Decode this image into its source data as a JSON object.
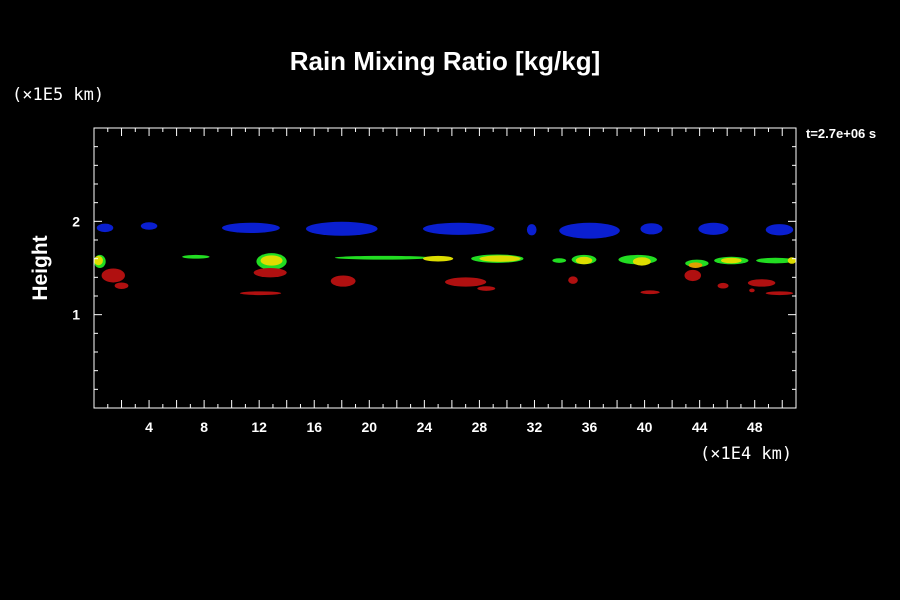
{
  "chart_data": {
    "type": "heatmap",
    "title": "Rain Mixing Ratio [kg/kg]",
    "ylabel": "Height",
    "y_unit_label": "(×1E5 km)",
    "x_unit_label": "(×1E4 km)",
    "time_label": "t=2.7e+06 s",
    "xlim": [
      0,
      51
    ],
    "ylim": [
      0,
      3
    ],
    "x_ticks": [
      "4",
      "8",
      "12",
      "16",
      "20",
      "24",
      "28",
      "32",
      "36",
      "40",
      "44",
      "48"
    ],
    "x_tick_values": [
      4,
      8,
      12,
      16,
      20,
      24,
      28,
      32,
      36,
      40,
      44,
      48
    ],
    "y_ticks": [
      "1",
      "2"
    ],
    "y_tick_values": [
      1,
      2
    ],
    "levels": [
      {
        "level": "low",
        "color": "#b01010"
      },
      {
        "level": "blue",
        "color": "#0a1fd0"
      },
      {
        "level": "mid",
        "color": "#22dd22"
      },
      {
        "level": "high",
        "color": "#dddd00"
      },
      {
        "level": "peak",
        "color": "#e0a000"
      }
    ],
    "features": [
      {
        "level": "blue",
        "x": 0.8,
        "y": 1.93,
        "w": 1.2,
        "h": 0.09
      },
      {
        "level": "blue",
        "x": 4.0,
        "y": 1.95,
        "w": 1.2,
        "h": 0.08
      },
      {
        "level": "blue",
        "x": 11.4,
        "y": 1.93,
        "w": 4.2,
        "h": 0.11
      },
      {
        "level": "blue",
        "x": 18.0,
        "y": 1.92,
        "w": 5.2,
        "h": 0.15
      },
      {
        "level": "blue",
        "x": 26.5,
        "y": 1.92,
        "w": 5.2,
        "h": 0.13
      },
      {
        "level": "blue",
        "x": 31.8,
        "y": 1.91,
        "w": 0.7,
        "h": 0.12
      },
      {
        "level": "blue",
        "x": 36.0,
        "y": 1.9,
        "w": 4.4,
        "h": 0.17
      },
      {
        "level": "blue",
        "x": 40.5,
        "y": 1.92,
        "w": 1.6,
        "h": 0.12
      },
      {
        "level": "blue",
        "x": 45.0,
        "y": 1.92,
        "w": 2.2,
        "h": 0.13
      },
      {
        "level": "blue",
        "x": 49.8,
        "y": 1.91,
        "w": 2.0,
        "h": 0.12
      },
      {
        "level": "mid",
        "x": 7.4,
        "y": 1.62,
        "w": 2.0,
        "h": 0.04
      },
      {
        "level": "mid",
        "x": 21.0,
        "y": 1.61,
        "w": 7.0,
        "h": 0.04
      },
      {
        "level": "mid",
        "x": 29.3,
        "y": 1.6,
        "w": 3.8,
        "h": 0.09
      },
      {
        "level": "mid",
        "x": 33.8,
        "y": 1.58,
        "w": 1.0,
        "h": 0.05
      },
      {
        "level": "mid",
        "x": 35.6,
        "y": 1.59,
        "w": 1.8,
        "h": 0.1
      },
      {
        "level": "mid",
        "x": 39.5,
        "y": 1.59,
        "w": 2.8,
        "h": 0.1
      },
      {
        "level": "mid",
        "x": 43.8,
        "y": 1.55,
        "w": 1.7,
        "h": 0.08
      },
      {
        "level": "mid",
        "x": 46.3,
        "y": 1.58,
        "w": 2.5,
        "h": 0.08
      },
      {
        "level": "mid",
        "x": 49.5,
        "y": 1.58,
        "w": 2.8,
        "h": 0.06
      },
      {
        "level": "mid",
        "x": 12.9,
        "y": 1.57,
        "w": 2.2,
        "h": 0.18
      },
      {
        "level": "mid",
        "x": 0.4,
        "y": 1.57,
        "w": 0.9,
        "h": 0.14
      },
      {
        "level": "high",
        "x": 25.0,
        "y": 1.6,
        "w": 2.2,
        "h": 0.06
      },
      {
        "level": "high",
        "x": 29.5,
        "y": 1.6,
        "w": 3.0,
        "h": 0.07
      },
      {
        "level": "high",
        "x": 35.6,
        "y": 1.58,
        "w": 1.2,
        "h": 0.08
      },
      {
        "level": "high",
        "x": 39.8,
        "y": 1.57,
        "w": 1.3,
        "h": 0.09
      },
      {
        "level": "high",
        "x": 46.3,
        "y": 1.58,
        "w": 1.5,
        "h": 0.06
      },
      {
        "level": "high",
        "x": 12.9,
        "y": 1.58,
        "w": 1.6,
        "h": 0.11
      },
      {
        "level": "high",
        "x": 0.3,
        "y": 1.58,
        "w": 0.7,
        "h": 0.1
      },
      {
        "level": "high",
        "x": 50.7,
        "y": 1.58,
        "w": 0.6,
        "h": 0.07
      },
      {
        "level": "peak",
        "x": 43.7,
        "y": 1.53,
        "w": 1.0,
        "h": 0.06
      },
      {
        "level": "low",
        "x": 1.4,
        "y": 1.42,
        "w": 1.7,
        "h": 0.15
      },
      {
        "level": "low",
        "x": 2.0,
        "y": 1.31,
        "w": 1.0,
        "h": 0.07
      },
      {
        "level": "low",
        "x": 12.8,
        "y": 1.45,
        "w": 2.4,
        "h": 0.1
      },
      {
        "level": "low",
        "x": 12.1,
        "y": 1.23,
        "w": 3.0,
        "h": 0.04
      },
      {
        "level": "low",
        "x": 18.1,
        "y": 1.36,
        "w": 1.8,
        "h": 0.12
      },
      {
        "level": "low",
        "x": 27.0,
        "y": 1.35,
        "w": 3.0,
        "h": 0.1
      },
      {
        "level": "low",
        "x": 28.5,
        "y": 1.28,
        "w": 1.3,
        "h": 0.05
      },
      {
        "level": "low",
        "x": 34.8,
        "y": 1.37,
        "w": 0.7,
        "h": 0.08
      },
      {
        "level": "low",
        "x": 40.4,
        "y": 1.24,
        "w": 1.4,
        "h": 0.04
      },
      {
        "level": "low",
        "x": 43.5,
        "y": 1.42,
        "w": 1.2,
        "h": 0.12
      },
      {
        "level": "low",
        "x": 45.7,
        "y": 1.31,
        "w": 0.8,
        "h": 0.06
      },
      {
        "level": "low",
        "x": 48.5,
        "y": 1.34,
        "w": 2.0,
        "h": 0.08
      },
      {
        "level": "low",
        "x": 49.8,
        "y": 1.23,
        "w": 2.0,
        "h": 0.04
      },
      {
        "level": "low",
        "x": 47.8,
        "y": 1.26,
        "w": 0.4,
        "h": 0.04
      }
    ]
  }
}
